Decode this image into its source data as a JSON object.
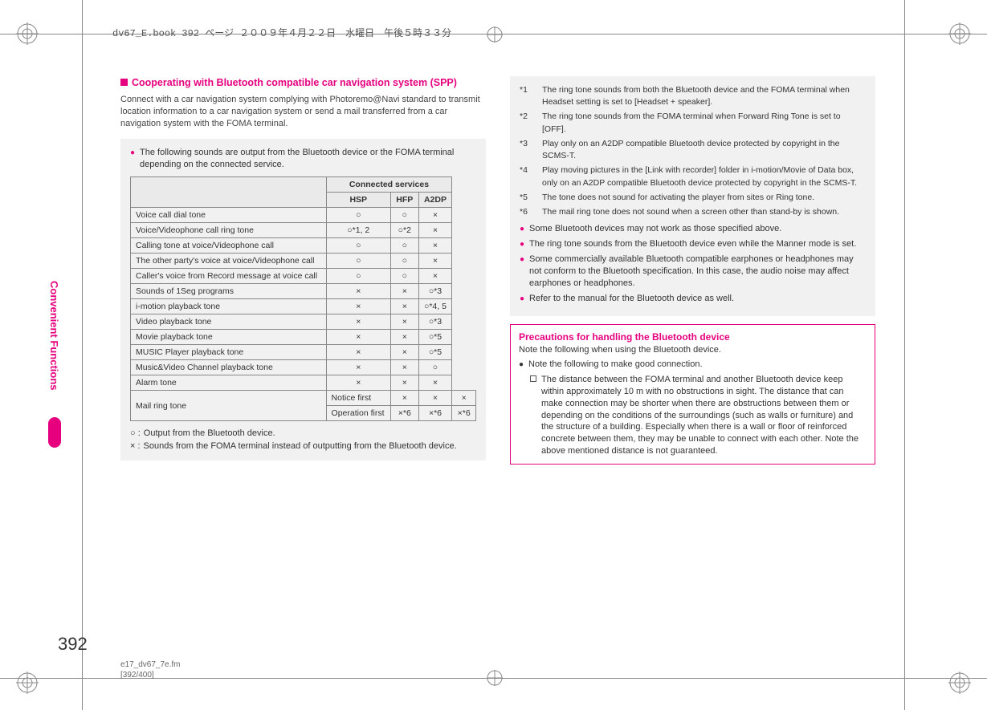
{
  "header_line": "dv67_E.book  392 ページ  ２００９年４月２２日　水曜日　午後５時３３分",
  "side_tab": "Convenient Functions",
  "page_number": "392",
  "footer_file": "e17_dv67_7e.fm",
  "footer_pages": "[392/400]",
  "left": {
    "heading": "Cooperating with Bluetooth compatible car navigation system (SPP)",
    "intro": "Connect with a car navigation system complying with Photoremo@Navi standard to transmit location information to a car navigation system or send a mail transferred from a car navigation system with the FOMA terminal.",
    "note_lead": "The following sounds are output from the Bluetooth device or the FOMA terminal depending on the connected service.",
    "table": {
      "header_group": "Connected services",
      "cols": [
        "HSP",
        "HFP",
        "A2DP"
      ],
      "rows": [
        {
          "label": "Voice call dial tone",
          "cells": [
            "○",
            "○",
            "×"
          ]
        },
        {
          "label": "Voice/Videophone call ring tone",
          "cells": [
            "○*1, 2",
            "○*2",
            "×"
          ]
        },
        {
          "label": "Calling tone at voice/Videophone call",
          "cells": [
            "○",
            "○",
            "×"
          ]
        },
        {
          "label": "The other party's voice at voice/Videophone call",
          "cells": [
            "○",
            "○",
            "×"
          ]
        },
        {
          "label": "Caller's voice from Record message at voice call",
          "cells": [
            "○",
            "○",
            "×"
          ]
        },
        {
          "label": "Sounds of 1Seg programs",
          "cells": [
            "×",
            "×",
            "○*3"
          ]
        },
        {
          "label": "i-motion playback tone",
          "cells": [
            "×",
            "×",
            "○*4, 5"
          ]
        },
        {
          "label": "Video playback tone",
          "cells": [
            "×",
            "×",
            "○*3"
          ]
        },
        {
          "label": "Movie playback tone",
          "cells": [
            "×",
            "×",
            "○*5"
          ]
        },
        {
          "label": "MUSIC Player playback tone",
          "cells": [
            "×",
            "×",
            "○*5"
          ]
        },
        {
          "label": "Music&Video Channel playback tone",
          "cells": [
            "×",
            "×",
            "○"
          ]
        },
        {
          "label": "Alarm tone",
          "cells": [
            "×",
            "×",
            "×"
          ]
        }
      ],
      "mail_label": "Mail ring tone",
      "mail_sub1": "Notice first",
      "mail_sub1_cells": [
        "×",
        "×",
        "×"
      ],
      "mail_sub2": "Operation first",
      "mail_sub2_cells": [
        "×*6",
        "×*6",
        "×*6"
      ]
    },
    "legend_o": "Output from the Bluetooth device.",
    "legend_x": "Sounds from the FOMA terminal instead of outputting from the Bluetooth device."
  },
  "right": {
    "footnotes": [
      {
        "n": "*1",
        "t": "The ring tone sounds from both the Bluetooth device and the FOMA terminal when Headset setting is set to [Headset + speaker]."
      },
      {
        "n": "*2",
        "t": "The ring tone sounds from the FOMA terminal when Forward Ring Tone is set to [OFF]."
      },
      {
        "n": "*3",
        "t": "Play only on an A2DP compatible Bluetooth device protected by copyright in the SCMS-T."
      },
      {
        "n": "*4",
        "t": "Play moving pictures in the [Link with recorder] folder in i-motion/Movie of Data box, only on an A2DP compatible Bluetooth device protected by copyright in the SCMS-T."
      },
      {
        "n": "*5",
        "t": "The tone does not sound for activating the player from sites or Ring tone."
      },
      {
        "n": "*6",
        "t": "The mail ring tone does not sound when a screen other than stand-by is shown."
      }
    ],
    "bullets": [
      "Some Bluetooth devices may not work as those specified above.",
      "The ring tone sounds from the Bluetooth device even while the Manner mode is set.",
      "Some commercially available Bluetooth compatible earphones or headphones may not conform to the Bluetooth specification. In this case, the audio noise may affect earphones or headphones.",
      "Refer to the manual for the Bluetooth device as well."
    ],
    "prec_title": "Precautions for handling the Bluetooth device",
    "prec_lead": "Note the following when using the Bluetooth device.",
    "prec_b1": "Note the following to make good connection.",
    "prec_sub": "The distance between the FOMA terminal and another Bluetooth device keep within approximately 10 m with no obstructions in sight. The distance that can make connection may be shorter when there are obstructions between them or depending on the conditions of the surroundings (such as walls or furniture) and the structure of a building. Especially when there is a wall or floor of reinforced concrete between them, they may be unable to connect with each other. Note the above mentioned distance is not guaranteed."
  },
  "colors": {
    "accent": "#e6007e",
    "text": "#333333",
    "grid": "#888888",
    "note_bg": "#f1f1f1"
  }
}
